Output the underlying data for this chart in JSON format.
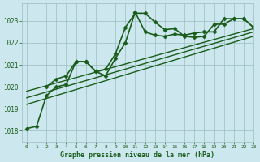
{
  "title": "Graphe pression niveau de la mer (hPa)",
  "bg_color": "#cce8ee",
  "grid_color": "#9bbcbe",
  "line_color": "#1a5c1a",
  "xlim": [
    -0.5,
    23
  ],
  "ylim": [
    1017.5,
    1023.8
  ],
  "yticks": [
    1018,
    1019,
    1020,
    1021,
    1022,
    1023
  ],
  "xticks": [
    0,
    1,
    2,
    3,
    4,
    5,
    6,
    7,
    8,
    9,
    10,
    11,
    12,
    13,
    14,
    15,
    16,
    17,
    18,
    19,
    20,
    21,
    22,
    23
  ],
  "series": [
    {
      "x": [
        0,
        1,
        2,
        3,
        4,
        5,
        6,
        7,
        8,
        9,
        10,
        11,
        12,
        13,
        14,
        15,
        16,
        17,
        18,
        19,
        20,
        21,
        22,
        23
      ],
      "y": [
        1018.1,
        1018.2,
        1019.6,
        1020.0,
        1020.1,
        1021.15,
        1021.15,
        1020.7,
        1020.8,
        1021.5,
        1022.7,
        1023.35,
        1023.35,
        1022.95,
        1022.6,
        1022.65,
        1022.3,
        1022.25,
        1022.3,
        1022.85,
        1022.85,
        1023.1,
        1023.1,
        1022.7
      ],
      "marker": "D",
      "lw": 1.2,
      "ms": 2.5,
      "style": "solid"
    },
    {
      "x": [
        2,
        3,
        4,
        5,
        6,
        7,
        8,
        9,
        10,
        11,
        12,
        13,
        14,
        15,
        16,
        17,
        18,
        19,
        20,
        21,
        22,
        23
      ],
      "y": [
        1020.0,
        1020.35,
        1020.5,
        1021.15,
        1021.15,
        1020.7,
        1020.5,
        1021.3,
        1022.0,
        1023.4,
        1022.5,
        1022.35,
        1022.3,
        1022.4,
        1022.35,
        1022.45,
        1022.5,
        1022.5,
        1023.1,
        1023.1,
        1023.1,
        1022.7
      ],
      "marker": "D",
      "lw": 1.2,
      "ms": 2.5,
      "style": "solid"
    },
    {
      "x": [
        0,
        23
      ],
      "y": [
        1019.8,
        1022.65
      ],
      "marker": null,
      "lw": 1.0,
      "ms": 0,
      "style": "solid"
    },
    {
      "x": [
        0,
        23
      ],
      "y": [
        1019.5,
        1022.5
      ],
      "marker": null,
      "lw": 1.0,
      "ms": 0,
      "style": "solid"
    },
    {
      "x": [
        0,
        23
      ],
      "y": [
        1019.2,
        1022.3
      ],
      "marker": null,
      "lw": 1.0,
      "ms": 0,
      "style": "solid"
    }
  ]
}
